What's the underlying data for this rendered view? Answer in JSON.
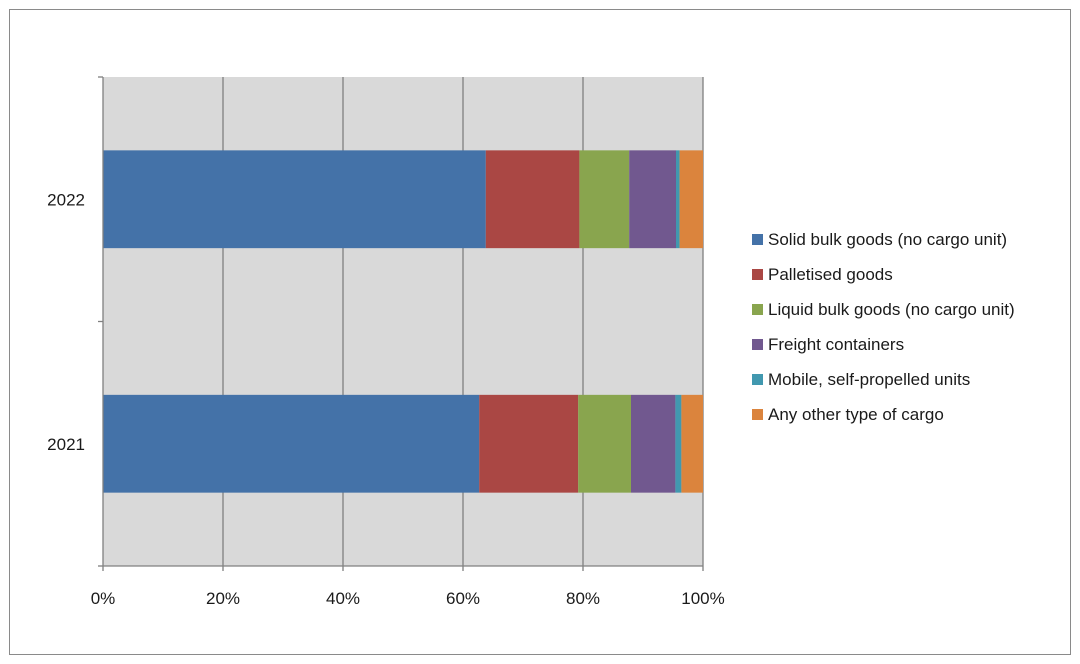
{
  "chart_data": {
    "type": "bar",
    "orientation": "horizontal",
    "stacked": "percent",
    "categories": [
      "2022",
      "2021"
    ],
    "series": [
      {
        "name": "Solid bulk goods (no cargo unit)",
        "color": "#4472a8",
        "values": [
          63.8,
          62.7
        ]
      },
      {
        "name": "Palletised goods",
        "color": "#aa4744",
        "values": [
          15.6,
          16.5
        ]
      },
      {
        "name": "Liquid bulk goods (no cargo unit)",
        "color": "#89a54e",
        "values": [
          8.3,
          8.8
        ]
      },
      {
        "name": "Freight containers",
        "color": "#71588f",
        "values": [
          7.8,
          7.4
        ]
      },
      {
        "name": "Mobile, self-propelled units",
        "color": "#4198af",
        "values": [
          0.6,
          1.0
        ]
      },
      {
        "name": "Any other type of cargo",
        "color": "#db843d",
        "values": [
          3.9,
          3.6
        ]
      }
    ],
    "x_ticks": [
      "0%",
      "20%",
      "40%",
      "60%",
      "80%",
      "100%"
    ],
    "xlim": [
      0,
      100
    ],
    "grid": true,
    "plot_background": "#d9d9d9",
    "legend_position": "right",
    "title": "",
    "xlabel": "",
    "ylabel": ""
  }
}
